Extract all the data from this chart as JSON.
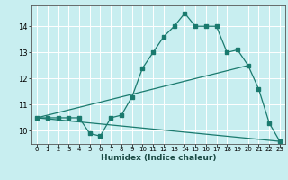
{
  "title": "",
  "xlabel": "Humidex (Indice chaleur)",
  "ylabel": "",
  "bg_color": "#c8eef0",
  "grid_color": "#ffffff",
  "line_color": "#1a7a6e",
  "line1_x": [
    0,
    1,
    2,
    3,
    4,
    5,
    6,
    7,
    8,
    9,
    10,
    11,
    12,
    13,
    14,
    15,
    16,
    17,
    18,
    19,
    20,
    21,
    22,
    23
  ],
  "line1_y": [
    10.5,
    10.5,
    10.5,
    10.5,
    10.5,
    9.9,
    9.8,
    10.5,
    10.6,
    11.3,
    12.4,
    13.0,
    13.6,
    14.0,
    14.5,
    14.0,
    14.0,
    14.0,
    13.0,
    13.1,
    12.5,
    11.6,
    10.3,
    9.6
  ],
  "line2_x": [
    0,
    20
  ],
  "line2_y": [
    10.5,
    12.5
  ],
  "line3_x": [
    0,
    23
  ],
  "line3_y": [
    10.5,
    9.6
  ],
  "xlim": [
    -0.5,
    23.5
  ],
  "ylim": [
    9.5,
    14.8
  ],
  "xticks": [
    0,
    1,
    2,
    3,
    4,
    5,
    6,
    7,
    8,
    9,
    10,
    11,
    12,
    13,
    14,
    15,
    16,
    17,
    18,
    19,
    20,
    21,
    22,
    23
  ],
  "yticks": [
    10,
    11,
    12,
    13,
    14
  ]
}
